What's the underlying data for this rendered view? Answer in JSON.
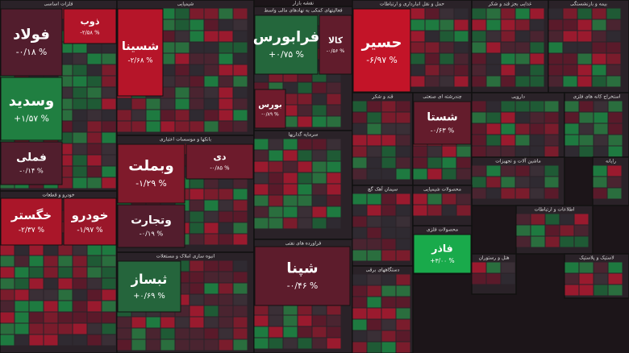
{
  "chart_data": {
    "type": "treemap",
    "title": "نقشه بازار",
    "sectors": [
      {
        "name": "فلزات اساسی",
        "stocks": [
          {
            "name": "فولاد",
            "value": -0.18,
            "value_label": "-۰/۱۸ %"
          },
          {
            "name": "ذوب",
            "value": -2.58,
            "value_label": "-۲/۵۸ %"
          },
          {
            "name": "وسدید",
            "value": 1.57,
            "value_label": "+۱/۵۷ %"
          },
          {
            "name": "فملی",
            "value": -0.14,
            "value_label": "-۰/۱۴ %"
          }
        ]
      },
      {
        "name": "خودرو و قطعات",
        "stocks": [
          {
            "name": "خگستر",
            "value": -2.37,
            "value_label": "-۲/۳۷ %"
          },
          {
            "name": "خودرو",
            "value": -1.97,
            "value_label": "-۱/۹۷ %"
          }
        ]
      },
      {
        "name": "شیمیایی",
        "stocks": [
          {
            "name": "شسینا",
            "value": -2.68,
            "value_label": "-۲/۶۸ %"
          }
        ]
      },
      {
        "name": "بانکها و موسسات اعتباری",
        "stocks": [
          {
            "name": "وبملت",
            "value": -1.29,
            "value_label": "-۱/۲۹ %"
          },
          {
            "name": "دی",
            "value": -0.85,
            "value_label": "-۰/۸۵ %"
          },
          {
            "name": "وتجارت",
            "value": -0.19,
            "value_label": "-۰/۱۹ %"
          }
        ]
      },
      {
        "name": "انبوه سازی املاک و مستغلات",
        "stocks": [
          {
            "name": "ثبساز",
            "value": 0.69,
            "value_label": "+۰/۶۹ %"
          }
        ]
      },
      {
        "name": "فعالیتهای کمکی به نهادهای مالی واسط",
        "stocks": [
          {
            "name": "فرابورس",
            "value": 0.75,
            "value_label": "+۰/۷۵ %"
          },
          {
            "name": "کالا",
            "value": -0.56,
            "value_label": "-۰/۵۶ %"
          },
          {
            "name": "بورس",
            "value": -0.89,
            "value_label": "-۰/۸۹ %"
          }
        ]
      },
      {
        "name": "سرمایه گذاریها",
        "stocks": []
      },
      {
        "name": "فراورده های نفتی",
        "stocks": [
          {
            "name": "شپنا",
            "value": -0.46,
            "value_label": "-۰/۴۶ %"
          }
        ]
      },
      {
        "name": "حمل و نقل انبارداری و ارتباطات",
        "stocks": [
          {
            "name": "حسیر",
            "value": -6.97,
            "value_label": "-۶/۹۷ %"
          }
        ]
      },
      {
        "name": "قند و شکر",
        "stocks": []
      },
      {
        "name": "چندرشته ای صنعتی",
        "stocks": [
          {
            "name": "شستا",
            "value": -0.63,
            "value_label": "-۰/۶۳ %"
          }
        ]
      },
      {
        "name": "سیمان آهک گچ",
        "stocks": []
      },
      {
        "name": "محصولات فلزی",
        "stocks": [
          {
            "name": "فاذر",
            "value": 3.0,
            "value_label": "+۳/۰۰ %"
          }
        ]
      },
      {
        "name": "دستگاههای برقی",
        "stocks": []
      },
      {
        "name": "غذایی بجز قند و شکر",
        "stocks": []
      },
      {
        "name": "بیمه و بازنشستگی",
        "stocks": []
      },
      {
        "name": "دارویی",
        "stocks": []
      },
      {
        "name": "استخراج کانه های فلزی",
        "stocks": []
      },
      {
        "name": "ماشین آلات و تجهیزات",
        "stocks": []
      },
      {
        "name": "رایانه",
        "stocks": []
      },
      {
        "name": "اطلاعات و ارتباطات",
        "stocks": []
      },
      {
        "name": "هتل و رستوران",
        "stocks": []
      },
      {
        "name": "لاستیک و پلاستیک",
        "stocks": []
      },
      {
        "name": "محصولات شیمیایی",
        "stocks": []
      }
    ]
  }
}
